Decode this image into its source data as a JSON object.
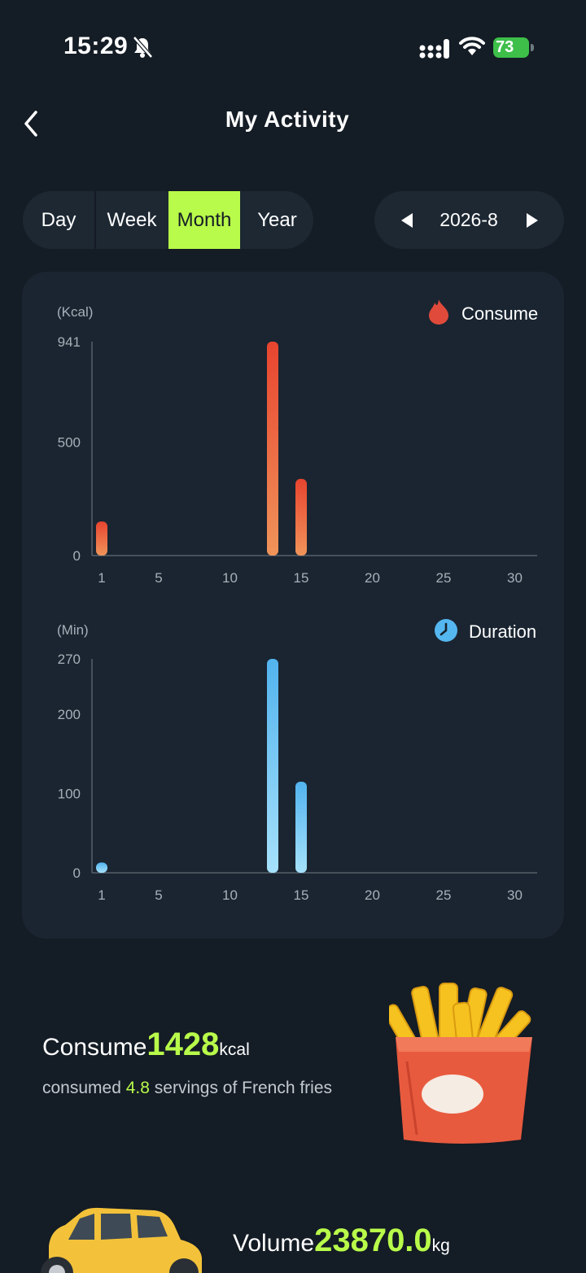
{
  "status": {
    "time": "15:29",
    "battery": "73"
  },
  "header": {
    "title": "My Activity"
  },
  "tabs": [
    {
      "label": "Day",
      "active": false
    },
    {
      "label": "Week",
      "active": false
    },
    {
      "label": "Month",
      "active": true
    },
    {
      "label": "Year",
      "active": false
    }
  ],
  "date_picker": {
    "label": "2026-8"
  },
  "colors": {
    "accent": "#b8fb4a",
    "consume": "#e8533a",
    "duration": "#5ab8f0",
    "background": "#141c25"
  },
  "icons": [
    "back-chevron-icon",
    "bell-slash-icon",
    "signal-icon",
    "wifi-icon",
    "battery-icon",
    "flame-icon",
    "clock-icon",
    "french-fries-image",
    "car-image"
  ],
  "chart_data": [
    {
      "type": "bar",
      "unit_label": "(Kcal)",
      "legend": "Consume",
      "x_ticks": [
        "1",
        "5",
        "10",
        "15",
        "20",
        "25",
        "30"
      ],
      "y_ticks": [
        "941",
        "500",
        "0"
      ],
      "ylim": [
        0,
        941
      ],
      "xlim": [
        1,
        31
      ],
      "points": [
        {
          "x": 1,
          "y": 150
        },
        {
          "x": 13,
          "y": 941
        },
        {
          "x": 15,
          "y": 337
        }
      ]
    },
    {
      "type": "bar",
      "unit_label": "(Min)",
      "legend": "Duration",
      "x_ticks": [
        "1",
        "5",
        "10",
        "15",
        "20",
        "25",
        "30"
      ],
      "y_ticks": [
        "270",
        "200",
        "100",
        "0"
      ],
      "ylim": [
        0,
        270
      ],
      "xlim": [
        1,
        31
      ],
      "points": [
        {
          "x": 1,
          "y": 13
        },
        {
          "x": 13,
          "y": 270
        },
        {
          "x": 15,
          "y": 115
        }
      ]
    }
  ],
  "summary": {
    "consume_label": "Consume",
    "consume_value": "1428",
    "consume_unit": "kcal",
    "servings_prefix": "consumed ",
    "servings_value": "4.8",
    "servings_suffix": " servings of French fries",
    "volume_label": "Volume",
    "volume_value": "23870.0",
    "volume_unit": "kg"
  }
}
